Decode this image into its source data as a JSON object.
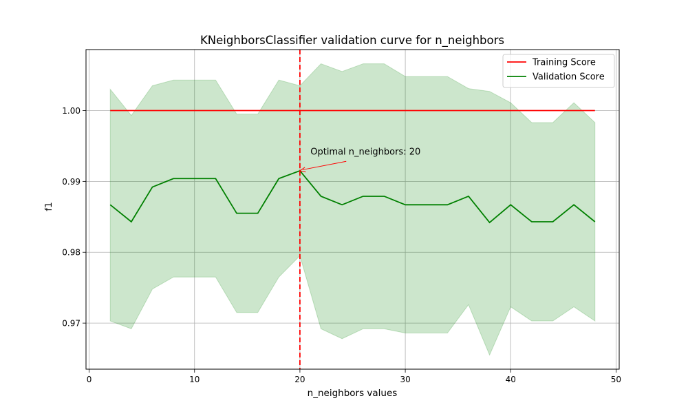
{
  "chart_data": {
    "type": "line",
    "title": "KNeighborsClassifier validation curve for n_neighbors",
    "xlabel": "n_neighbors values",
    "ylabel": "f1",
    "xlim": [
      -0.3,
      50.3
    ],
    "ylim": [
      0.9635,
      1.0086
    ],
    "xticks": [
      0,
      10,
      20,
      30,
      40,
      50
    ],
    "xtick_labels": [
      "0",
      "10",
      "20",
      "30",
      "40",
      "50"
    ],
    "yticks": [
      0.97,
      0.98,
      0.99,
      1.0
    ],
    "ytick_labels": [
      "0.97",
      "0.98",
      "0.99",
      "1.00"
    ],
    "grid": true,
    "legend_position": "top-right",
    "x": [
      2,
      4,
      6,
      8,
      10,
      12,
      14,
      16,
      18,
      20,
      22,
      24,
      26,
      28,
      30,
      32,
      34,
      36,
      38,
      40,
      42,
      44,
      46,
      48
    ],
    "series": [
      {
        "name": "Training Score",
        "color": "#ff0000",
        "values": [
          1.0,
          1.0,
          1.0,
          1.0,
          1.0,
          1.0,
          1.0,
          1.0,
          1.0,
          1.0,
          1.0,
          1.0,
          1.0,
          1.0,
          1.0,
          1.0,
          1.0,
          1.0,
          1.0,
          1.0,
          1.0,
          1.0,
          1.0,
          1.0
        ]
      },
      {
        "name": "Validation Score",
        "color": "#008000",
        "values": [
          0.9867,
          0.9843,
          0.9892,
          0.9904,
          0.9904,
          0.9904,
          0.9855,
          0.9855,
          0.9904,
          0.9915,
          0.9879,
          0.9867,
          0.9879,
          0.9879,
          0.9867,
          0.9867,
          0.9867,
          0.9879,
          0.9842,
          0.9867,
          0.9843,
          0.9843,
          0.9867,
          0.9843
        ],
        "band_upper": [
          1.003,
          0.9993,
          1.0035,
          1.0043,
          1.0043,
          1.0043,
          0.9995,
          0.9995,
          1.0043,
          1.0035,
          1.0066,
          1.0055,
          1.0066,
          1.0066,
          1.0048,
          1.0048,
          1.0048,
          1.0031,
          1.0027,
          1.0011,
          0.9983,
          0.9983,
          1.0011,
          0.9983
        ],
        "band_lower": [
          0.9703,
          0.9692,
          0.9748,
          0.9765,
          0.9765,
          0.9765,
          0.9715,
          0.9715,
          0.9765,
          0.9795,
          0.9692,
          0.9678,
          0.9692,
          0.9692,
          0.9686,
          0.9686,
          0.9686,
          0.9726,
          0.9655,
          0.9723,
          0.9703,
          0.9703,
          0.9723,
          0.9703
        ],
        "band_color": "#008000"
      }
    ],
    "vline": {
      "x": 20,
      "color": "#ff0000"
    },
    "annotation": {
      "text": "Optimal n_neighbors: 20",
      "point": [
        20,
        0.9915
      ],
      "text_anchor": [
        21,
        0.9938
      ],
      "color": "#ff0000"
    }
  }
}
